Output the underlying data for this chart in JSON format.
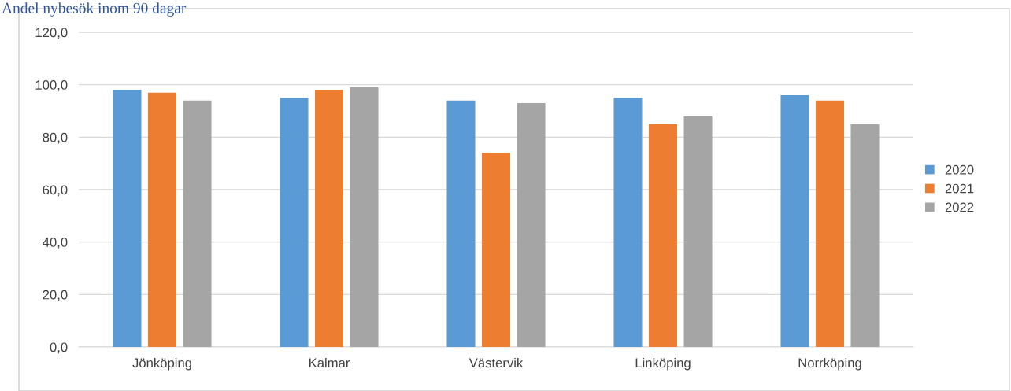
{
  "chart_data": {
    "type": "bar",
    "title": "Andel nybesök inom 90 dagar",
    "categories": [
      "Jönköping",
      "Kalmar",
      "Västervik",
      "Linköping",
      "Norrköping"
    ],
    "series": [
      {
        "name": "2020",
        "color": "#5b9bd5",
        "values": [
          98,
          95,
          94,
          95,
          96
        ]
      },
      {
        "name": "2021",
        "color": "#ed7d31",
        "values": [
          97,
          98,
          74,
          85,
          94
        ]
      },
      {
        "name": "2022",
        "color": "#a5a5a5",
        "values": [
          94,
          99,
          93,
          88,
          85
        ]
      }
    ],
    "ylim": [
      0,
      120
    ],
    "yticks": [
      {
        "value": 0,
        "label": "0,0"
      },
      {
        "value": 20,
        "label": "20,0"
      },
      {
        "value": 40,
        "label": "40,0"
      },
      {
        "value": 60,
        "label": "60,0"
      },
      {
        "value": 80,
        "label": "80,0"
      },
      {
        "value": 100,
        "label": "100,0"
      },
      {
        "value": 120,
        "label": "120,0"
      }
    ],
    "grid": "y",
    "legend": "right"
  }
}
